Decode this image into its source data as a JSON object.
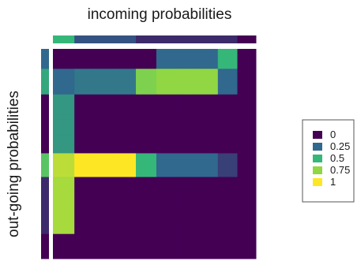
{
  "chart_data": {
    "type": "heatmap",
    "title": "incoming probabilities",
    "ylabel": "out-going probabilities",
    "color_scale": {
      "domain": [
        0,
        0.25,
        0.5,
        0.75,
        1
      ],
      "colors": [
        "#440154",
        "#31688e",
        "#35b779",
        "#90d743",
        "#fde725"
      ]
    },
    "legend": {
      "position": "right",
      "items": [
        {
          "label": "0",
          "value": 0,
          "color": "#440154"
        },
        {
          "label": "0.25",
          "value": 0.25,
          "color": "#31688e"
        },
        {
          "label": "0.5",
          "value": 0.5,
          "color": "#35b779"
        },
        {
          "label": "0.75",
          "value": 0.75,
          "color": "#90d743"
        },
        {
          "label": "1",
          "value": 1,
          "color": "#fde725"
        }
      ]
    },
    "x_count": 10,
    "y_count": 10,
    "column_widths": [
      1.1,
      1.05,
      1.05,
      1.05,
      1.05,
      1.05,
      1.05,
      1.05,
      1.0,
      0.95
    ],
    "row_heights": [
      1.05,
      1.35,
      1.05,
      1.05,
      1.0,
      1.25,
      1.0,
      1.0,
      1.0,
      1.3
    ],
    "matrix": [
      [
        0,
        0,
        0,
        0,
        0,
        0.25,
        0.25,
        0.25,
        0.5,
        0
      ],
      [
        0.25,
        0.3,
        0.3,
        0.3,
        0.7,
        0.75,
        0.75,
        0.75,
        0.25,
        0
      ],
      [
        0.4,
        0,
        0,
        0,
        0,
        0,
        0,
        0,
        0,
        0
      ],
      [
        0.4,
        0,
        0,
        0,
        0,
        0,
        0,
        0,
        0,
        0
      ],
      [
        0.4,
        0,
        0,
        0,
        0,
        0,
        0,
        0,
        0,
        0
      ],
      [
        0.85,
        1,
        1,
        1,
        0.5,
        0.25,
        0.25,
        0.25,
        0.15,
        0
      ],
      [
        0.8,
        0,
        0,
        0,
        0,
        0,
        0,
        0,
        0,
        0
      ],
      [
        0.8,
        0,
        0,
        0,
        0,
        0,
        0,
        0,
        0,
        0
      ],
      [
        0.8,
        0,
        0,
        0,
        0,
        0,
        0,
        0,
        0,
        0
      ],
      [
        0,
        0,
        0,
        0,
        0,
        0,
        0,
        0,
        0,
        0
      ]
    ],
    "top_bar": [
      0.5,
      0.2,
      0.2,
      0.2,
      0.1,
      0.1,
      0.1,
      0.1,
      0.1,
      0
    ],
    "left_bar": [
      0.25,
      0.45,
      0,
      0,
      0,
      0.6,
      0.1,
      0.1,
      0.1,
      0
    ]
  }
}
